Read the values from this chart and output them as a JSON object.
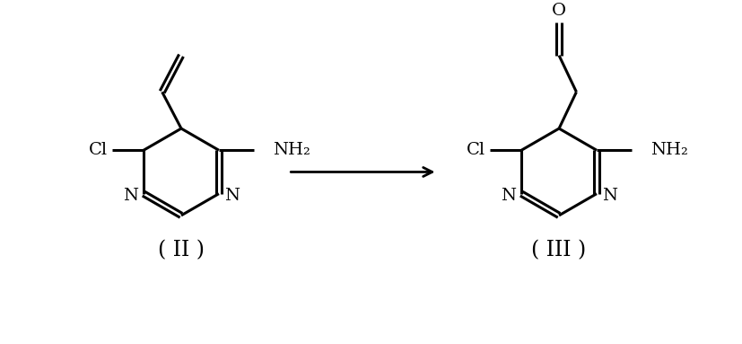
{
  "background_color": "#ffffff",
  "line_color": "#000000",
  "line_width": 2.2,
  "font_size_atom": 14,
  "font_size_comp": 17,
  "compound_II_label": "( II )",
  "compound_III_label": "( III )",
  "Cl_label": "Cl",
  "NH2_label": "NH₂",
  "N_label": "N",
  "O_label": "O",
  "figsize": [
    8.27,
    3.83
  ],
  "dpi": 100
}
